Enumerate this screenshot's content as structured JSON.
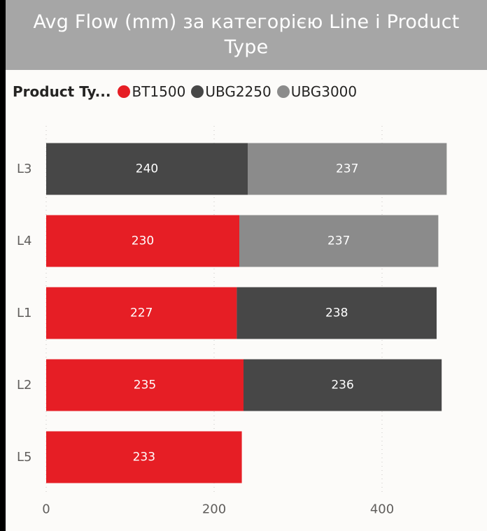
{
  "chart_data": {
    "type": "bar",
    "orientation": "horizontal",
    "stacked": true,
    "title": "Avg Flow (mm) за категорією Line і Product Type",
    "legend_title": "Product Ty...",
    "legend_placement": "top-left",
    "categories": [
      "L3",
      "L4",
      "L1",
      "L2",
      "L5"
    ],
    "series": [
      {
        "name": "BT1500",
        "color": "#e61e25",
        "values": [
          null,
          230,
          227,
          235,
          233
        ]
      },
      {
        "name": "UBG2250",
        "color": "#474747",
        "values": [
          240,
          null,
          238,
          236,
          null
        ]
      },
      {
        "name": "UBG3000",
        "color": "#8b8b8b",
        "values": [
          237,
          237,
          null,
          null,
          null
        ]
      }
    ],
    "xticks": [
      0,
      200,
      400
    ],
    "xlim": [
      0,
      500
    ],
    "grid": true
  }
}
